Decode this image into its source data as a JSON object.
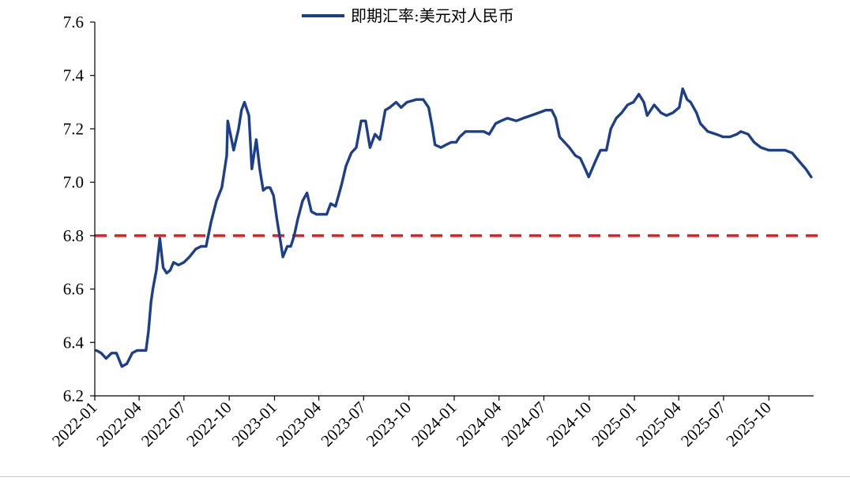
{
  "chart_data": {
    "type": "line",
    "title": "",
    "xlabel": "",
    "ylabel": "",
    "ylim": [
      6.2,
      7.6
    ],
    "yticks": [
      "6.2",
      "6.4",
      "6.6",
      "6.8",
      "7.0",
      "7.2",
      "7.4",
      "7.6"
    ],
    "xlim": [
      "2022-01-01",
      "2025-12-31"
    ],
    "xticks": [
      "2022-01",
      "2022-04",
      "2022-07",
      "2022-10",
      "2023-01",
      "2023-04",
      "2023-07",
      "2023-10",
      "2024-01",
      "2024-04",
      "2024-07",
      "2024-10",
      "2025-01",
      "2025-04",
      "2025-07",
      "2025-10"
    ],
    "grid": false,
    "legend_position": "top-center",
    "series": [
      {
        "name": "即期汇率:美元对人民币",
        "color": "#1b3f8b",
        "points": [
          [
            "2022-01-04",
            6.37
          ],
          [
            "2022-01-14",
            6.36
          ],
          [
            "2022-01-24",
            6.34
          ],
          [
            "2022-02-04",
            6.36
          ],
          [
            "2022-02-14",
            6.36
          ],
          [
            "2022-02-25",
            6.31
          ],
          [
            "2022-03-07",
            6.32
          ],
          [
            "2022-03-18",
            6.36
          ],
          [
            "2022-03-28",
            6.37
          ],
          [
            "2022-04-08",
            6.37
          ],
          [
            "2022-04-15",
            6.37
          ],
          [
            "2022-04-20",
            6.44
          ],
          [
            "2022-04-25",
            6.55
          ],
          [
            "2022-04-29",
            6.6
          ],
          [
            "2022-05-06",
            6.67
          ],
          [
            "2022-05-13",
            6.79
          ],
          [
            "2022-05-20",
            6.68
          ],
          [
            "2022-05-27",
            6.66
          ],
          [
            "2022-06-03",
            6.67
          ],
          [
            "2022-06-10",
            6.7
          ],
          [
            "2022-06-20",
            6.69
          ],
          [
            "2022-07-01",
            6.7
          ],
          [
            "2022-07-12",
            6.72
          ],
          [
            "2022-07-25",
            6.75
          ],
          [
            "2022-08-05",
            6.76
          ],
          [
            "2022-08-15",
            6.76
          ],
          [
            "2022-08-25",
            6.85
          ],
          [
            "2022-09-05",
            6.93
          ],
          [
            "2022-09-16",
            6.98
          ],
          [
            "2022-09-26",
            7.1
          ],
          [
            "2022-09-28",
            7.23
          ],
          [
            "2022-10-10",
            7.12
          ],
          [
            "2022-10-20",
            7.2
          ],
          [
            "2022-10-26",
            7.27
          ],
          [
            "2022-11-01",
            7.3
          ],
          [
            "2022-11-10",
            7.25
          ],
          [
            "2022-11-16",
            7.05
          ],
          [
            "2022-11-25",
            7.16
          ],
          [
            "2022-12-02",
            7.05
          ],
          [
            "2022-12-09",
            6.97
          ],
          [
            "2022-12-16",
            6.98
          ],
          [
            "2022-12-23",
            6.98
          ],
          [
            "2022-12-30",
            6.95
          ],
          [
            "2023-01-06",
            6.86
          ],
          [
            "2023-01-13",
            6.78
          ],
          [
            "2023-01-18",
            6.72
          ],
          [
            "2023-01-27",
            6.76
          ],
          [
            "2023-02-03",
            6.76
          ],
          [
            "2023-02-10",
            6.8
          ],
          [
            "2023-02-17",
            6.86
          ],
          [
            "2023-02-27",
            6.93
          ],
          [
            "2023-03-08",
            6.96
          ],
          [
            "2023-03-17",
            6.89
          ],
          [
            "2023-03-27",
            6.88
          ],
          [
            "2023-04-07",
            6.88
          ],
          [
            "2023-04-17",
            6.88
          ],
          [
            "2023-04-25",
            6.92
          ],
          [
            "2023-05-05",
            6.91
          ],
          [
            "2023-05-17",
            6.99
          ],
          [
            "2023-05-26",
            7.06
          ],
          [
            "2023-06-06",
            7.11
          ],
          [
            "2023-06-16",
            7.13
          ],
          [
            "2023-06-26",
            7.23
          ],
          [
            "2023-07-05",
            7.23
          ],
          [
            "2023-07-14",
            7.13
          ],
          [
            "2023-07-24",
            7.18
          ],
          [
            "2023-08-03",
            7.16
          ],
          [
            "2023-08-14",
            7.27
          ],
          [
            "2023-08-23",
            7.28
          ],
          [
            "2023-09-05",
            7.3
          ],
          [
            "2023-09-15",
            7.28
          ],
          [
            "2023-09-27",
            7.3
          ],
          [
            "2023-10-16",
            7.31
          ],
          [
            "2023-10-30",
            7.31
          ],
          [
            "2023-11-10",
            7.28
          ],
          [
            "2023-11-17",
            7.21
          ],
          [
            "2023-11-23",
            7.14
          ],
          [
            "2023-12-05",
            7.13
          ],
          [
            "2023-12-15",
            7.14
          ],
          [
            "2023-12-26",
            7.15
          ],
          [
            "2024-01-05",
            7.15
          ],
          [
            "2024-01-12",
            7.17
          ],
          [
            "2024-01-24",
            7.19
          ],
          [
            "2024-02-05",
            7.19
          ],
          [
            "2024-02-20",
            7.19
          ],
          [
            "2024-03-01",
            7.19
          ],
          [
            "2024-03-12",
            7.18
          ],
          [
            "2024-03-25",
            7.22
          ],
          [
            "2024-04-05",
            7.23
          ],
          [
            "2024-04-18",
            7.24
          ],
          [
            "2024-05-06",
            7.23
          ],
          [
            "2024-05-20",
            7.24
          ],
          [
            "2024-06-05",
            7.25
          ],
          [
            "2024-06-20",
            7.26
          ],
          [
            "2024-07-05",
            7.27
          ],
          [
            "2024-07-17",
            7.27
          ],
          [
            "2024-07-25",
            7.24
          ],
          [
            "2024-08-02",
            7.17
          ],
          [
            "2024-08-12",
            7.15
          ],
          [
            "2024-08-22",
            7.13
          ],
          [
            "2024-09-03",
            7.1
          ],
          [
            "2024-09-13",
            7.09
          ],
          [
            "2024-09-23",
            7.05
          ],
          [
            "2024-09-30",
            7.02
          ],
          [
            "2024-10-14",
            7.08
          ],
          [
            "2024-10-24",
            7.12
          ],
          [
            "2024-11-05",
            7.12
          ],
          [
            "2024-11-14",
            7.2
          ],
          [
            "2024-11-25",
            7.24
          ],
          [
            "2024-12-06",
            7.26
          ],
          [
            "2024-12-18",
            7.29
          ],
          [
            "2024-12-30",
            7.3
          ],
          [
            "2025-01-10",
            7.33
          ],
          [
            "2025-01-20",
            7.3
          ],
          [
            "2025-01-27",
            7.25
          ],
          [
            "2025-02-10",
            7.29
          ],
          [
            "2025-02-24",
            7.26
          ],
          [
            "2025-03-07",
            7.25
          ],
          [
            "2025-03-20",
            7.26
          ],
          [
            "2025-04-02",
            7.28
          ],
          [
            "2025-04-09",
            7.35
          ],
          [
            "2025-04-18",
            7.31
          ],
          [
            "2025-04-25",
            7.3
          ],
          [
            "2025-05-07",
            7.26
          ],
          [
            "2025-05-15",
            7.22
          ],
          [
            "2025-05-30",
            7.19
          ],
          [
            "2025-06-16",
            7.18
          ],
          [
            "2025-06-30",
            7.17
          ],
          [
            "2025-07-14",
            7.17
          ],
          [
            "2025-07-28",
            7.18
          ],
          [
            "2025-08-05",
            7.19
          ],
          [
            "2025-08-20",
            7.18
          ],
          [
            "2025-09-01",
            7.15
          ],
          [
            "2025-09-15",
            7.13
          ],
          [
            "2025-10-01",
            7.12
          ],
          [
            "2025-10-15",
            7.12
          ],
          [
            "2025-11-03",
            7.12
          ],
          [
            "2025-11-17",
            7.11
          ],
          [
            "2025-12-01",
            7.08
          ],
          [
            "2025-12-15",
            7.05
          ],
          [
            "2025-12-26",
            7.02
          ]
        ]
      }
    ],
    "reference_line": {
      "y": 6.8,
      "color": "#e02020",
      "style": "dashed"
    }
  }
}
